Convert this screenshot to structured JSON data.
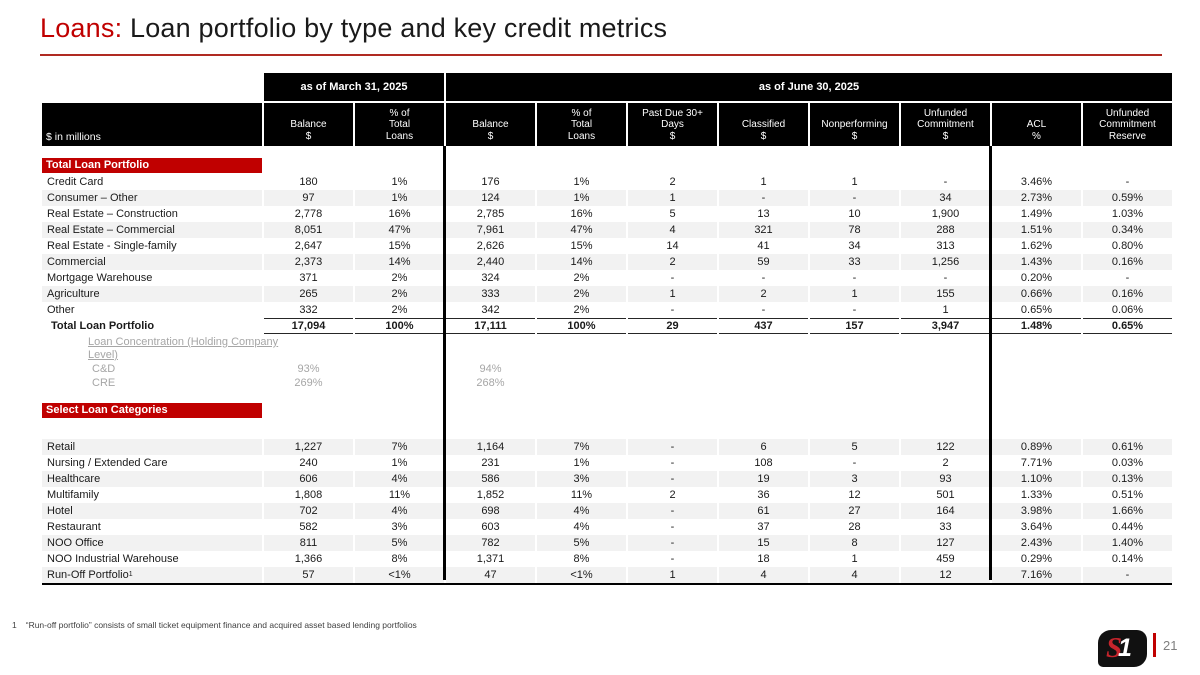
{
  "title": {
    "highlight": "Loans:",
    "rest": " Loan portfolio by type and key credit metrics"
  },
  "colors": {
    "accent": "#C00000",
    "stripe": "#F2F2F2",
    "muted_text": "#A6A6A6",
    "header_bg": "#000000"
  },
  "table": {
    "corner_label": "$ in millions",
    "periods": [
      {
        "label": "as of March 31, 2025"
      },
      {
        "label": "as of June 30, 2025"
      }
    ],
    "columns": [
      "Balance\n$",
      "% of\nTotal\nLoans",
      "Balance\n$",
      "% of\nTotal\nLoans",
      "Past Due 30+\nDays\n$",
      "Classified\n$",
      "Nonperforming\n$",
      "Unfunded\nCommitment\n$",
      "ACL\n%",
      "Unfunded\nCommitment\nReserve"
    ],
    "sections": [
      {
        "title": "Total Loan Portfolio",
        "rows": [
          {
            "label": "Credit Card",
            "values": [
              "180",
              "1%",
              "176",
              "1%",
              "2",
              "1",
              "1",
              "-",
              "3.46%",
              "-"
            ]
          },
          {
            "label": "Consumer – Other",
            "values": [
              "97",
              "1%",
              "124",
              "1%",
              "1",
              "-",
              "-",
              "34",
              "2.73%",
              "0.59%"
            ]
          },
          {
            "label": "Real Estate – Construction",
            "values": [
              "2,778",
              "16%",
              "2,785",
              "16%",
              "5",
              "13",
              "10",
              "1,900",
              "1.49%",
              "1.03%"
            ]
          },
          {
            "label": "Real Estate – Commercial",
            "values": [
              "8,051",
              "47%",
              "7,961",
              "47%",
              "4",
              "321",
              "78",
              "288",
              "1.51%",
              "0.34%"
            ]
          },
          {
            "label": "Real Estate - Single-family",
            "values": [
              "2,647",
              "15%",
              "2,626",
              "15%",
              "14",
              "41",
              "34",
              "313",
              "1.62%",
              "0.80%"
            ]
          },
          {
            "label": "Commercial",
            "values": [
              "2,373",
              "14%",
              "2,440",
              "14%",
              "2",
              "59",
              "33",
              "1,256",
              "1.43%",
              "0.16%"
            ]
          },
          {
            "label": "Mortgage Warehouse",
            "values": [
              "371",
              "2%",
              "324",
              "2%",
              "-",
              "-",
              "-",
              "-",
              "0.20%",
              "-"
            ]
          },
          {
            "label": "Agriculture",
            "values": [
              "265",
              "2%",
              "333",
              "2%",
              "1",
              "2",
              "1",
              "155",
              "0.66%",
              "0.16%"
            ]
          },
          {
            "label": "Other",
            "values": [
              "332",
              "2%",
              "342",
              "2%",
              "-",
              "-",
              "-",
              "1",
              "0.65%",
              "0.06%"
            ]
          },
          {
            "label": "Total Loan Portfolio",
            "total": true,
            "values": [
              "17,094",
              "100%",
              "17,111",
              "100%",
              "29",
              "437",
              "157",
              "3,947",
              "1.48%",
              "0.65%"
            ]
          }
        ],
        "concentration": {
          "heading": "Loan Concentration (Holding Company Level)",
          "rows": [
            {
              "label": "C&D",
              "values": [
                "93%",
                "",
                "94%",
                "",
                "",
                "",
                "",
                "",
                "",
                ""
              ]
            },
            {
              "label": "CRE",
              "values": [
                "269%",
                "",
                "268%",
                "",
                "",
                "",
                "",
                "",
                "",
                ""
              ]
            }
          ]
        }
      },
      {
        "title": "Select Loan Categories",
        "rows": [
          {
            "label": "Retail",
            "values": [
              "1,227",
              "7%",
              "1,164",
              "7%",
              "-",
              "6",
              "5",
              "122",
              "0.89%",
              "0.61%"
            ]
          },
          {
            "label": "Nursing / Extended Care",
            "values": [
              "240",
              "1%",
              "231",
              "1%",
              "-",
              "108",
              "-",
              "2",
              "7.71%",
              "0.03%"
            ]
          },
          {
            "label": "Healthcare",
            "values": [
              "606",
              "4%",
              "586",
              "3%",
              "-",
              "19",
              "3",
              "93",
              "1.10%",
              "0.13%"
            ]
          },
          {
            "label": "Multifamily",
            "values": [
              "1,808",
              "11%",
              "1,852",
              "11%",
              "2",
              "36",
              "12",
              "501",
              "1.33%",
              "0.51%"
            ]
          },
          {
            "label": "Hotel",
            "values": [
              "702",
              "4%",
              "698",
              "4%",
              "-",
              "61",
              "27",
              "164",
              "3.98%",
              "1.66%"
            ]
          },
          {
            "label": "Restaurant",
            "values": [
              "582",
              "3%",
              "603",
              "4%",
              "-",
              "37",
              "28",
              "33",
              "3.64%",
              "0.44%"
            ]
          },
          {
            "label": "NOO Office",
            "values": [
              "811",
              "5%",
              "782",
              "5%",
              "-",
              "15",
              "8",
              "127",
              "2.43%",
              "1.40%"
            ]
          },
          {
            "label": "NOO Industrial Warehouse",
            "values": [
              "1,366",
              "8%",
              "1,371",
              "8%",
              "-",
              "18",
              "1",
              "459",
              "0.29%",
              "0.14%"
            ]
          },
          {
            "label": "Run-Off Portfolio",
            "sup": "1",
            "values": [
              "57",
              "<1%",
              "47",
              "<1%",
              "1",
              "4",
              "4",
              "12",
              "7.16%",
              "-"
            ]
          }
        ]
      }
    ]
  },
  "footnote": {
    "marker": "1",
    "text": "“Run-off portfolio” consists of small ticket equipment finance and acquired asset based lending portfolios"
  },
  "footer": {
    "logo_s": "S",
    "logo_one": "1",
    "page_number": "21"
  }
}
